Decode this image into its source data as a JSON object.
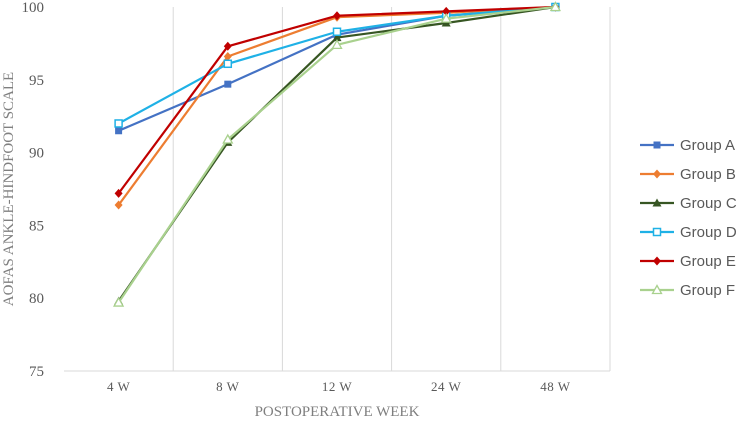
{
  "chart_data": {
    "type": "line",
    "categories": [
      "4 W",
      "8 W",
      "12 W",
      "24 W",
      "48 W"
    ],
    "xlabel": "POSTOPERATIVE WEEK",
    "ylabel": "AOFAS ANKLE-HINDFOOT SCALE",
    "ylim": [
      75,
      100
    ],
    "yticks": [
      75,
      80,
      85,
      90,
      95,
      100
    ],
    "grid": "vertical",
    "legend": "right",
    "series": [
      {
        "name": "Group A",
        "color": "#4472C4",
        "marker": "square",
        "values": [
          91.5,
          94.7,
          98.1,
          99.4,
          100
        ]
      },
      {
        "name": "Group B",
        "color": "#ED7D31",
        "marker": "diamond",
        "values": [
          86.4,
          96.6,
          99.3,
          99.6,
          100
        ]
      },
      {
        "name": "Group C",
        "color": "#375623",
        "marker": "triangle",
        "values": [
          79.8,
          90.7,
          97.9,
          98.9,
          100
        ]
      },
      {
        "name": "Group D",
        "color": "#1FB1E6",
        "marker": "square-open",
        "values": [
          92.0,
          96.1,
          98.3,
          99.4,
          100
        ]
      },
      {
        "name": "Group E",
        "color": "#C00000",
        "marker": "diamond",
        "values": [
          87.2,
          97.3,
          99.4,
          99.7,
          100
        ]
      },
      {
        "name": "Group F",
        "color": "#A9D18E",
        "marker": "triangle-open",
        "values": [
          79.7,
          90.9,
          97.4,
          99.2,
          100
        ]
      }
    ]
  }
}
